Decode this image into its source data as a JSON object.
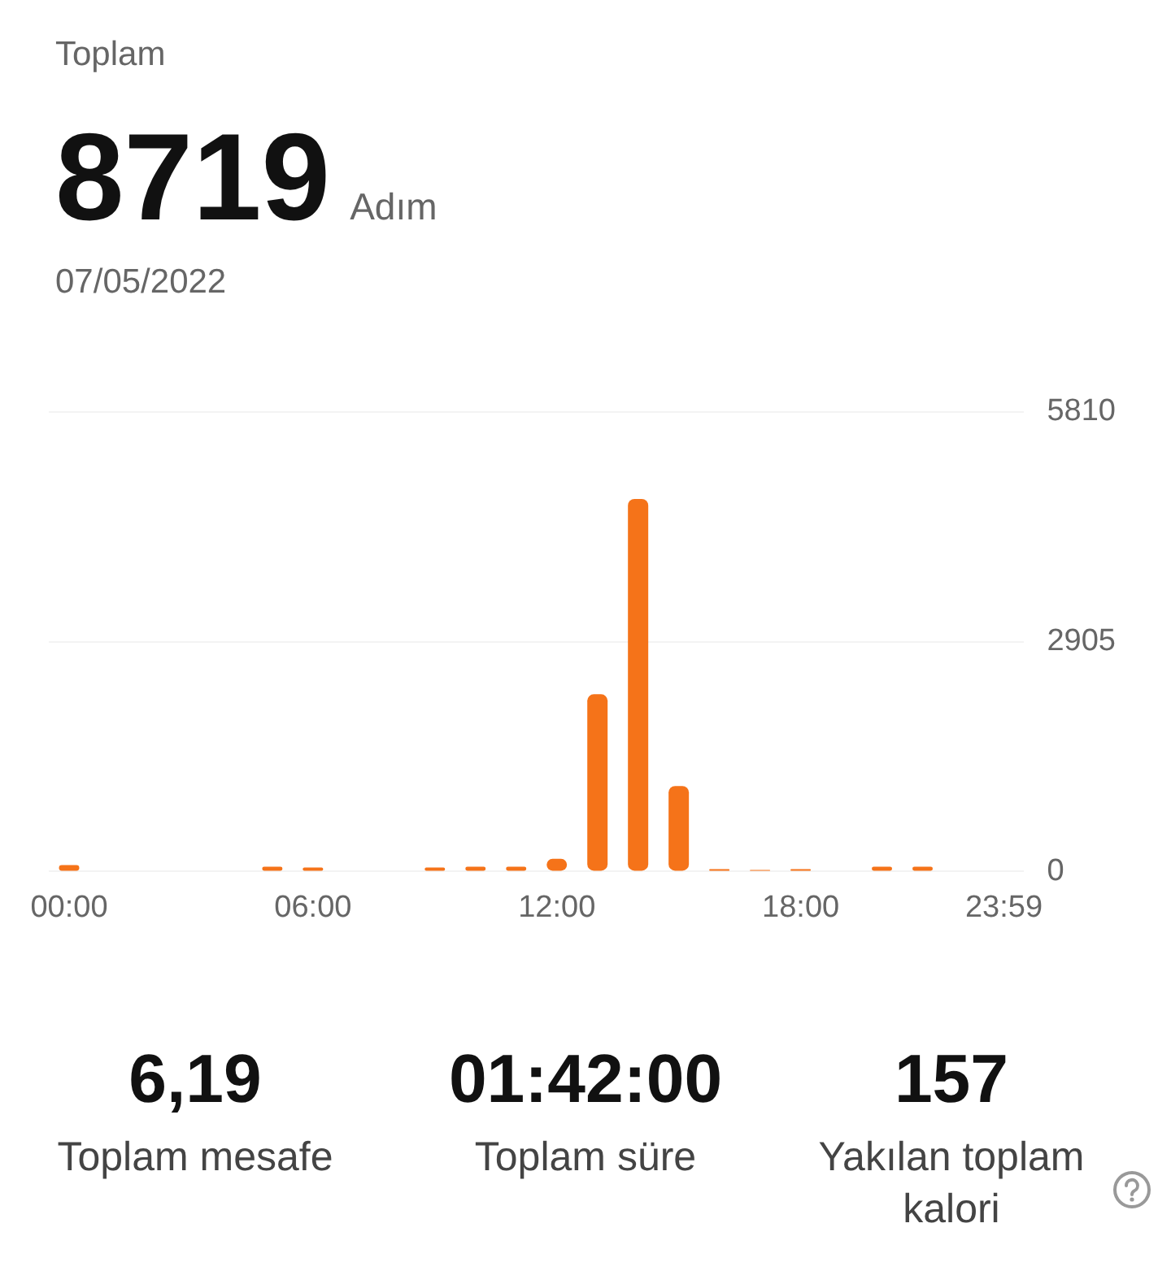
{
  "chart_data": {
    "type": "bar",
    "title": "Toplam",
    "subtitle": "07/05/2022",
    "annotations": [
      "8719",
      "Adım",
      "6,19",
      "Toplam mesafe",
      "01:42:00",
      "Toplam süre",
      "157",
      "Yakılan toplam kalori"
    ],
    "categories": [
      "00:00",
      null,
      null,
      null,
      null,
      null,
      "06:00",
      null,
      null,
      null,
      null,
      null,
      "12:00",
      null,
      null,
      null,
      null,
      null,
      "18:00",
      null,
      null,
      null,
      null,
      "23:59"
    ],
    "values": [
      80,
      0,
      0,
      0,
      0,
      60,
      50,
      0,
      0,
      50,
      60,
      60,
      160,
      2240,
      4710,
      1080,
      30,
      20,
      30,
      null,
      60,
      60,
      0,
      0
    ],
    "color": "#f57319",
    "ylim": [
      0,
      5810
    ],
    "yticks": [
      0,
      2905,
      5810
    ],
    "grid": "y",
    "legend": false
  }
}
